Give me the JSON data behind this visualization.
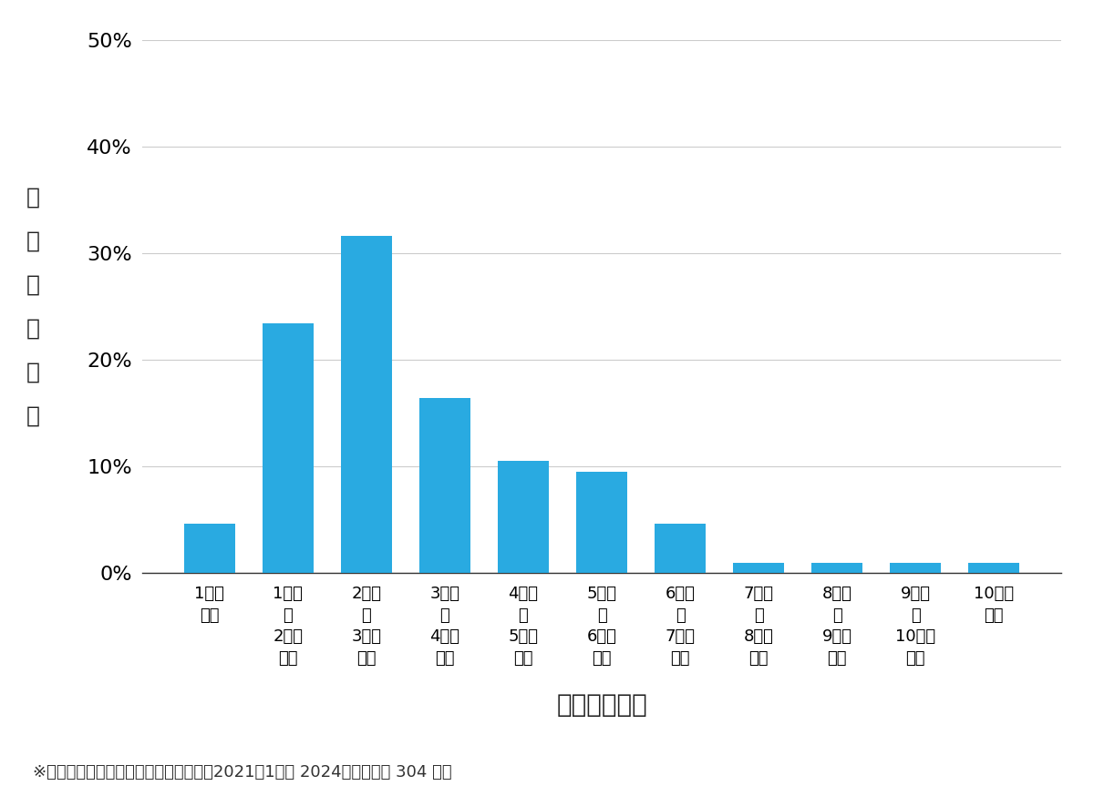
{
  "categories": [
    "1万円\n未満",
    "1万円\n〜\n2万円\n未満",
    "2万円\n〜\n3万円\n未満",
    "3万円\n〜\n4万円\n未満",
    "4万円\n〜\n5万円\n未満",
    "5万円\n〜\n6万円\n未満",
    "6万円\n〜\n7万円\n未満",
    "7万円\n〜\n8万円\n未満",
    "8万円\n〜\n9万円\n未満",
    "9万円\n〜\n10万円\n未満",
    "10万円\n以上"
  ],
  "values": [
    4.6,
    23.4,
    31.6,
    16.4,
    10.5,
    9.5,
    4.6,
    1.0,
    1.0,
    1.0,
    1.0
  ],
  "bar_color": "#29aae1",
  "ylabel_chars": [
    "費",
    "用",
    "帯",
    "の",
    "割",
    "合"
  ],
  "xlabel": "費用帯（円）",
  "footnote": "※弊社受付の案件を対象に集計（期間：2021年1月～ 2024年８月、計 304 件）",
  "ylim": [
    0,
    50
  ],
  "yticks": [
    0,
    10,
    20,
    30,
    40,
    50
  ],
  "background_color": "#ffffff",
  "grid_color": "#cccccc",
  "bar_edge_color": "none",
  "tick_fontsize": 13,
  "label_fontsize": 16,
  "ylabel_fontsize": 18,
  "footnote_fontsize": 13
}
